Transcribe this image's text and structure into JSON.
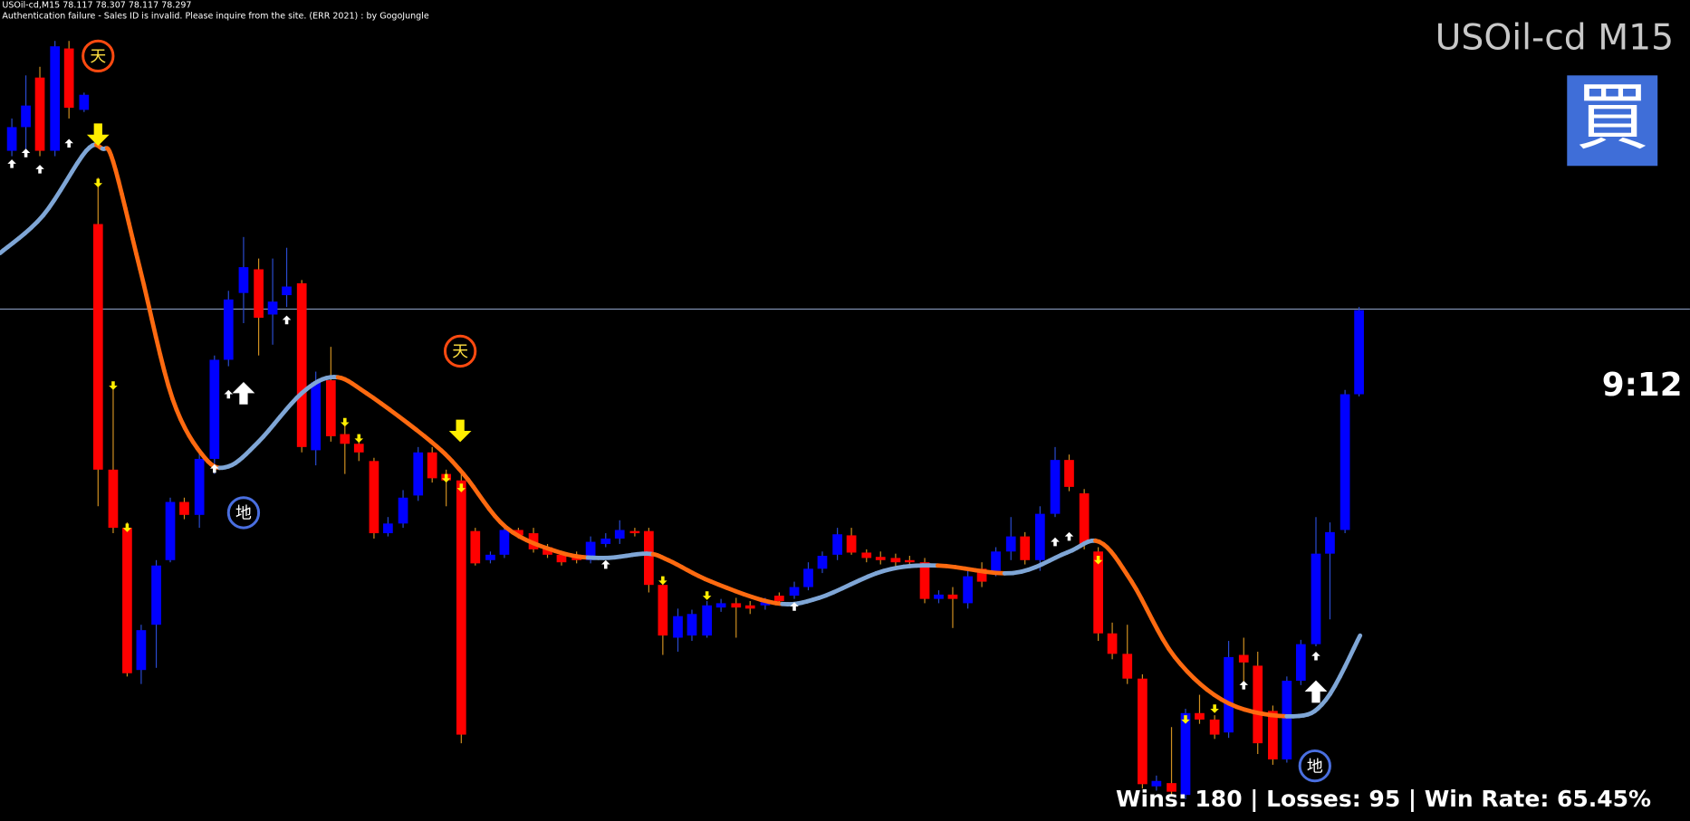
{
  "header": {
    "symbol_line": "USOil-cd,M15  78.117 78.307 78.117 78.297",
    "notice": "Authentication failure - Sales ID is invalid. Please inquire from the site. (ERR 2021) : by GogoJungle"
  },
  "title": "USOil-cd M15",
  "signal_button": "買",
  "countdown": "9:12",
  "stats": "Wins: 180 | Losses: 95 | Win Rate: 65.45%",
  "markers": [
    {
      "label": "天"
    },
    {
      "label": "天"
    },
    {
      "label": "地"
    },
    {
      "label": "地"
    }
  ]
}
